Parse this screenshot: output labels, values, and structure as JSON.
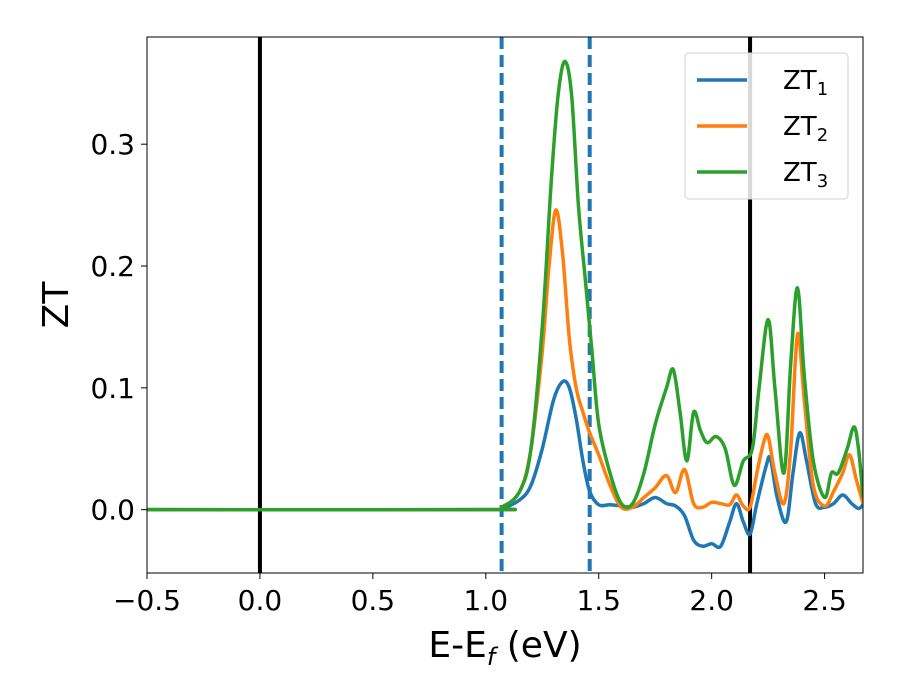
{
  "chart_data": {
    "type": "line",
    "xlabel": "E-E",
    "xlabel_sub": "f",
    "xlabel_unit": " (eV)",
    "ylabel": "ZT",
    "xlim": [
      -0.5,
      2.67
    ],
    "ylim": [
      -0.052,
      0.388
    ],
    "xticks": [
      -0.5,
      0.0,
      0.5,
      1.0,
      1.5,
      2.0,
      2.5
    ],
    "xtick_labels": [
      "−0.5",
      "0.0",
      "0.5",
      "1.0",
      "1.5",
      "2.0",
      "2.5"
    ],
    "yticks": [
      0.0,
      0.1,
      0.2,
      0.3
    ],
    "ytick_labels": [
      "0.0",
      "0.1",
      "0.2",
      "0.3"
    ],
    "grid": false,
    "legend_position": "top-right",
    "vlines": [
      {
        "x": 0.0,
        "style": "solid",
        "color": "#000000"
      },
      {
        "x": 1.07,
        "style": "dashed",
        "color": "#1f77b4"
      },
      {
        "x": 1.46,
        "style": "dashed",
        "color": "#1f77b4"
      },
      {
        "x": 2.17,
        "style": "solid",
        "color": "#000000"
      }
    ],
    "series": [
      {
        "name": "ZT",
        "sub": "1",
        "color": "#1f77b4",
        "points": [
          [
            -0.5,
            0
          ],
          [
            1.0,
            0
          ],
          [
            1.07,
            0.001
          ],
          [
            1.15,
            0.008
          ],
          [
            1.2,
            0.02
          ],
          [
            1.25,
            0.05
          ],
          [
            1.3,
            0.09
          ],
          [
            1.34,
            0.105
          ],
          [
            1.37,
            0.1
          ],
          [
            1.4,
            0.075
          ],
          [
            1.43,
            0.04
          ],
          [
            1.46,
            0.015
          ],
          [
            1.5,
            0.004
          ],
          [
            1.55,
            0.004
          ],
          [
            1.6,
            0.003
          ],
          [
            1.65,
            0.002
          ],
          [
            1.7,
            0.005
          ],
          [
            1.75,
            0.01
          ],
          [
            1.8,
            0.005
          ],
          [
            1.84,
            0.003
          ],
          [
            1.88,
            -0.005
          ],
          [
            1.92,
            -0.025
          ],
          [
            1.96,
            -0.03
          ],
          [
            2.0,
            -0.028
          ],
          [
            2.04,
            -0.03
          ],
          [
            2.08,
            -0.01
          ],
          [
            2.11,
            0.005
          ],
          [
            2.14,
            -0.01
          ],
          [
            2.17,
            -0.02
          ],
          [
            2.2,
            0.005
          ],
          [
            2.24,
            0.035
          ],
          [
            2.26,
            0.042
          ],
          [
            2.29,
            0.01
          ],
          [
            2.33,
            -0.01
          ],
          [
            2.36,
            0.03
          ],
          [
            2.39,
            0.063
          ],
          [
            2.42,
            0.04
          ],
          [
            2.46,
            0.005
          ],
          [
            2.5,
            0.002
          ],
          [
            2.54,
            0.005
          ],
          [
            2.58,
            0.012
          ],
          [
            2.62,
            0.005
          ],
          [
            2.65,
            0.001
          ],
          [
            2.67,
            0.004
          ]
        ]
      },
      {
        "name": "ZT",
        "sub": "2",
        "color": "#ff7f0e",
        "points": [
          [
            -0.5,
            0
          ],
          [
            1.0,
            0
          ],
          [
            1.07,
            0.002
          ],
          [
            1.15,
            0.015
          ],
          [
            1.2,
            0.05
          ],
          [
            1.25,
            0.13
          ],
          [
            1.28,
            0.2
          ],
          [
            1.31,
            0.246
          ],
          [
            1.34,
            0.21
          ],
          [
            1.37,
            0.14
          ],
          [
            1.4,
            0.1
          ],
          [
            1.43,
            0.08
          ],
          [
            1.46,
            0.063
          ],
          [
            1.5,
            0.045
          ],
          [
            1.55,
            0.02
          ],
          [
            1.6,
            0.002
          ],
          [
            1.65,
            0.002
          ],
          [
            1.7,
            0.01
          ],
          [
            1.75,
            0.018
          ],
          [
            1.8,
            0.028
          ],
          [
            1.84,
            0.014
          ],
          [
            1.88,
            0.033
          ],
          [
            1.92,
            0.005
          ],
          [
            1.96,
            0.002
          ],
          [
            2.0,
            0.006
          ],
          [
            2.04,
            0.005
          ],
          [
            2.08,
            0.004
          ],
          [
            2.11,
            0.012
          ],
          [
            2.14,
            0.003
          ],
          [
            2.17,
            0.002
          ],
          [
            2.2,
            0.03
          ],
          [
            2.23,
            0.055
          ],
          [
            2.25,
            0.06
          ],
          [
            2.28,
            0.03
          ],
          [
            2.32,
            0.005
          ],
          [
            2.35,
            0.05
          ],
          [
            2.38,
            0.144
          ],
          [
            2.41,
            0.09
          ],
          [
            2.45,
            0.02
          ],
          [
            2.5,
            0.003
          ],
          [
            2.54,
            0.015
          ],
          [
            2.58,
            0.03
          ],
          [
            2.61,
            0.045
          ],
          [
            2.64,
            0.025
          ],
          [
            2.67,
            0.005
          ]
        ]
      },
      {
        "name": "ZT",
        "sub": "3",
        "color": "#2ca02c",
        "points": [
          [
            -0.5,
            0
          ],
          [
            1.0,
            0
          ],
          [
            1.07,
            0.002
          ],
          [
            1.15,
            0.015
          ],
          [
            1.2,
            0.05
          ],
          [
            1.25,
            0.15
          ],
          [
            1.29,
            0.27
          ],
          [
            1.32,
            0.34
          ],
          [
            1.35,
            0.368
          ],
          [
            1.38,
            0.34
          ],
          [
            1.41,
            0.25
          ],
          [
            1.44,
            0.19
          ],
          [
            1.47,
            0.13
          ],
          [
            1.5,
            0.07
          ],
          [
            1.55,
            0.03
          ],
          [
            1.6,
            0.005
          ],
          [
            1.65,
            0.005
          ],
          [
            1.7,
            0.03
          ],
          [
            1.75,
            0.07
          ],
          [
            1.8,
            0.1
          ],
          [
            1.83,
            0.115
          ],
          [
            1.86,
            0.08
          ],
          [
            1.89,
            0.04
          ],
          [
            1.92,
            0.08
          ],
          [
            1.95,
            0.065
          ],
          [
            1.98,
            0.055
          ],
          [
            2.02,
            0.06
          ],
          [
            2.06,
            0.05
          ],
          [
            2.1,
            0.02
          ],
          [
            2.14,
            0.04
          ],
          [
            2.18,
            0.05
          ],
          [
            2.21,
            0.1
          ],
          [
            2.25,
            0.156
          ],
          [
            2.28,
            0.1
          ],
          [
            2.32,
            0.03
          ],
          [
            2.35,
            0.12
          ],
          [
            2.38,
            0.182
          ],
          [
            2.41,
            0.11
          ],
          [
            2.45,
            0.04
          ],
          [
            2.5,
            0.01
          ],
          [
            2.53,
            0.03
          ],
          [
            2.56,
            0.03
          ],
          [
            2.6,
            0.05
          ],
          [
            2.63,
            0.068
          ],
          [
            2.65,
            0.05
          ],
          [
            2.67,
            0.01
          ]
        ]
      }
    ]
  }
}
